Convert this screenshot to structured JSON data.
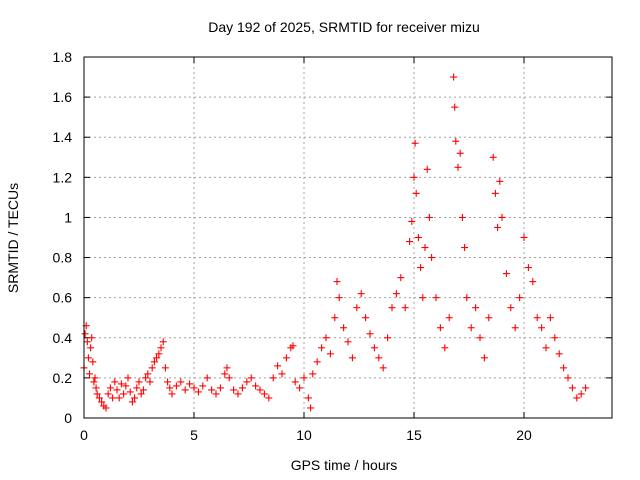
{
  "chart_data": {
    "type": "scatter",
    "title": "Day 192 of 2025, SRMTID for receiver mizu",
    "xlabel": "GPS time / hours",
    "ylabel": "SRMTID / TECUs",
    "xlim": [
      0,
      24
    ],
    "ylim": [
      0,
      1.8
    ],
    "x_ticks": [
      0,
      5,
      10,
      15,
      20
    ],
    "x_tick_labels": [
      "0",
      "5",
      "10",
      "15",
      "20"
    ],
    "y_ticks": [
      0,
      0.2,
      0.4,
      0.6,
      0.8,
      1,
      1.2,
      1.4,
      1.6,
      1.8
    ],
    "y_tick_labels": [
      "0",
      "0.2",
      "0.4",
      "0.6",
      "0.8",
      "1",
      "1.2",
      "1.4",
      "1.6",
      "1.8"
    ],
    "grid": true,
    "marker": "+",
    "marker_color": "#ff0000",
    "series": [
      {
        "name": "SRMTID",
        "points": [
          [
            0.0,
            0.25
          ],
          [
            0.05,
            0.42
          ],
          [
            0.1,
            0.46
          ],
          [
            0.15,
            0.38
          ],
          [
            0.2,
            0.3
          ],
          [
            0.25,
            0.22
          ],
          [
            0.3,
            0.35
          ],
          [
            0.35,
            0.4
          ],
          [
            0.4,
            0.28
          ],
          [
            0.45,
            0.18
          ],
          [
            0.5,
            0.2
          ],
          [
            0.55,
            0.15
          ],
          [
            0.6,
            0.12
          ],
          [
            0.7,
            0.1
          ],
          [
            0.8,
            0.08
          ],
          [
            0.9,
            0.06
          ],
          [
            1.0,
            0.05
          ],
          [
            1.1,
            0.12
          ],
          [
            1.2,
            0.15
          ],
          [
            1.3,
            0.1
          ],
          [
            1.4,
            0.18
          ],
          [
            1.5,
            0.14
          ],
          [
            1.6,
            0.1
          ],
          [
            1.7,
            0.17
          ],
          [
            1.8,
            0.12
          ],
          [
            1.9,
            0.16
          ],
          [
            2.0,
            0.2
          ],
          [
            2.1,
            0.13
          ],
          [
            2.2,
            0.08
          ],
          [
            2.3,
            0.1
          ],
          [
            2.4,
            0.15
          ],
          [
            2.5,
            0.18
          ],
          [
            2.6,
            0.12
          ],
          [
            2.7,
            0.14
          ],
          [
            2.8,
            0.2
          ],
          [
            2.9,
            0.22
          ],
          [
            3.0,
            0.18
          ],
          [
            3.1,
            0.25
          ],
          [
            3.2,
            0.28
          ],
          [
            3.3,
            0.3
          ],
          [
            3.4,
            0.32
          ],
          [
            3.5,
            0.35
          ],
          [
            3.6,
            0.38
          ],
          [
            3.7,
            0.25
          ],
          [
            3.8,
            0.18
          ],
          [
            3.9,
            0.15
          ],
          [
            4.0,
            0.12
          ],
          [
            4.2,
            0.16
          ],
          [
            4.4,
            0.18
          ],
          [
            4.6,
            0.14
          ],
          [
            4.8,
            0.17
          ],
          [
            5.0,
            0.15
          ],
          [
            5.2,
            0.13
          ],
          [
            5.4,
            0.16
          ],
          [
            5.6,
            0.2
          ],
          [
            5.8,
            0.14
          ],
          [
            6.0,
            0.12
          ],
          [
            6.2,
            0.15
          ],
          [
            6.4,
            0.22
          ],
          [
            6.5,
            0.25
          ],
          [
            6.6,
            0.2
          ],
          [
            6.8,
            0.14
          ],
          [
            7.0,
            0.12
          ],
          [
            7.2,
            0.15
          ],
          [
            7.4,
            0.18
          ],
          [
            7.6,
            0.2
          ],
          [
            7.8,
            0.16
          ],
          [
            8.0,
            0.14
          ],
          [
            8.2,
            0.12
          ],
          [
            8.4,
            0.1
          ],
          [
            8.6,
            0.2
          ],
          [
            8.8,
            0.26
          ],
          [
            9.0,
            0.22
          ],
          [
            9.2,
            0.3
          ],
          [
            9.4,
            0.35
          ],
          [
            9.5,
            0.36
          ],
          [
            9.6,
            0.18
          ],
          [
            9.8,
            0.15
          ],
          [
            10.0,
            0.2
          ],
          [
            10.2,
            0.1
          ],
          [
            10.3,
            0.05
          ],
          [
            10.4,
            0.22
          ],
          [
            10.6,
            0.28
          ],
          [
            10.8,
            0.35
          ],
          [
            11.0,
            0.4
          ],
          [
            11.2,
            0.32
          ],
          [
            11.4,
            0.5
          ],
          [
            11.5,
            0.68
          ],
          [
            11.6,
            0.6
          ],
          [
            11.8,
            0.45
          ],
          [
            12.0,
            0.38
          ],
          [
            12.2,
            0.3
          ],
          [
            12.4,
            0.55
          ],
          [
            12.6,
            0.62
          ],
          [
            12.8,
            0.5
          ],
          [
            13.0,
            0.42
          ],
          [
            13.2,
            0.35
          ],
          [
            13.4,
            0.3
          ],
          [
            13.6,
            0.25
          ],
          [
            13.8,
            0.4
          ],
          [
            14.0,
            0.55
          ],
          [
            14.2,
            0.62
          ],
          [
            14.4,
            0.7
          ],
          [
            14.6,
            0.55
          ],
          [
            14.8,
            0.88
          ],
          [
            14.9,
            0.98
          ],
          [
            15.0,
            1.2
          ],
          [
            15.05,
            1.37
          ],
          [
            15.1,
            1.12
          ],
          [
            15.2,
            0.9
          ],
          [
            15.3,
            0.75
          ],
          [
            15.4,
            0.6
          ],
          [
            15.5,
            0.85
          ],
          [
            15.6,
            1.24
          ],
          [
            15.7,
            1.0
          ],
          [
            15.8,
            0.8
          ],
          [
            16.0,
            0.6
          ],
          [
            16.2,
            0.45
          ],
          [
            16.4,
            0.35
          ],
          [
            16.6,
            0.5
          ],
          [
            16.8,
            1.7
          ],
          [
            16.85,
            1.55
          ],
          [
            16.9,
            1.38
          ],
          [
            17.0,
            1.25
          ],
          [
            17.1,
            1.32
          ],
          [
            17.2,
            1.0
          ],
          [
            17.3,
            0.85
          ],
          [
            17.4,
            0.6
          ],
          [
            17.6,
            0.45
          ],
          [
            17.8,
            0.55
          ],
          [
            18.0,
            0.4
          ],
          [
            18.2,
            0.3
          ],
          [
            18.4,
            0.5
          ],
          [
            18.6,
            1.3
          ],
          [
            18.7,
            1.12
          ],
          [
            18.8,
            0.95
          ],
          [
            18.9,
            1.18
          ],
          [
            19.0,
            1.0
          ],
          [
            19.2,
            0.72
          ],
          [
            19.4,
            0.55
          ],
          [
            19.6,
            0.45
          ],
          [
            19.8,
            0.6
          ],
          [
            20.0,
            0.9
          ],
          [
            20.2,
            0.75
          ],
          [
            20.4,
            0.68
          ],
          [
            20.6,
            0.5
          ],
          [
            20.8,
            0.45
          ],
          [
            21.0,
            0.35
          ],
          [
            21.2,
            0.5
          ],
          [
            21.4,
            0.4
          ],
          [
            21.6,
            0.32
          ],
          [
            21.8,
            0.25
          ],
          [
            22.0,
            0.2
          ],
          [
            22.2,
            0.15
          ],
          [
            22.4,
            0.1
          ],
          [
            22.6,
            0.12
          ],
          [
            22.8,
            0.15
          ]
        ]
      }
    ]
  }
}
